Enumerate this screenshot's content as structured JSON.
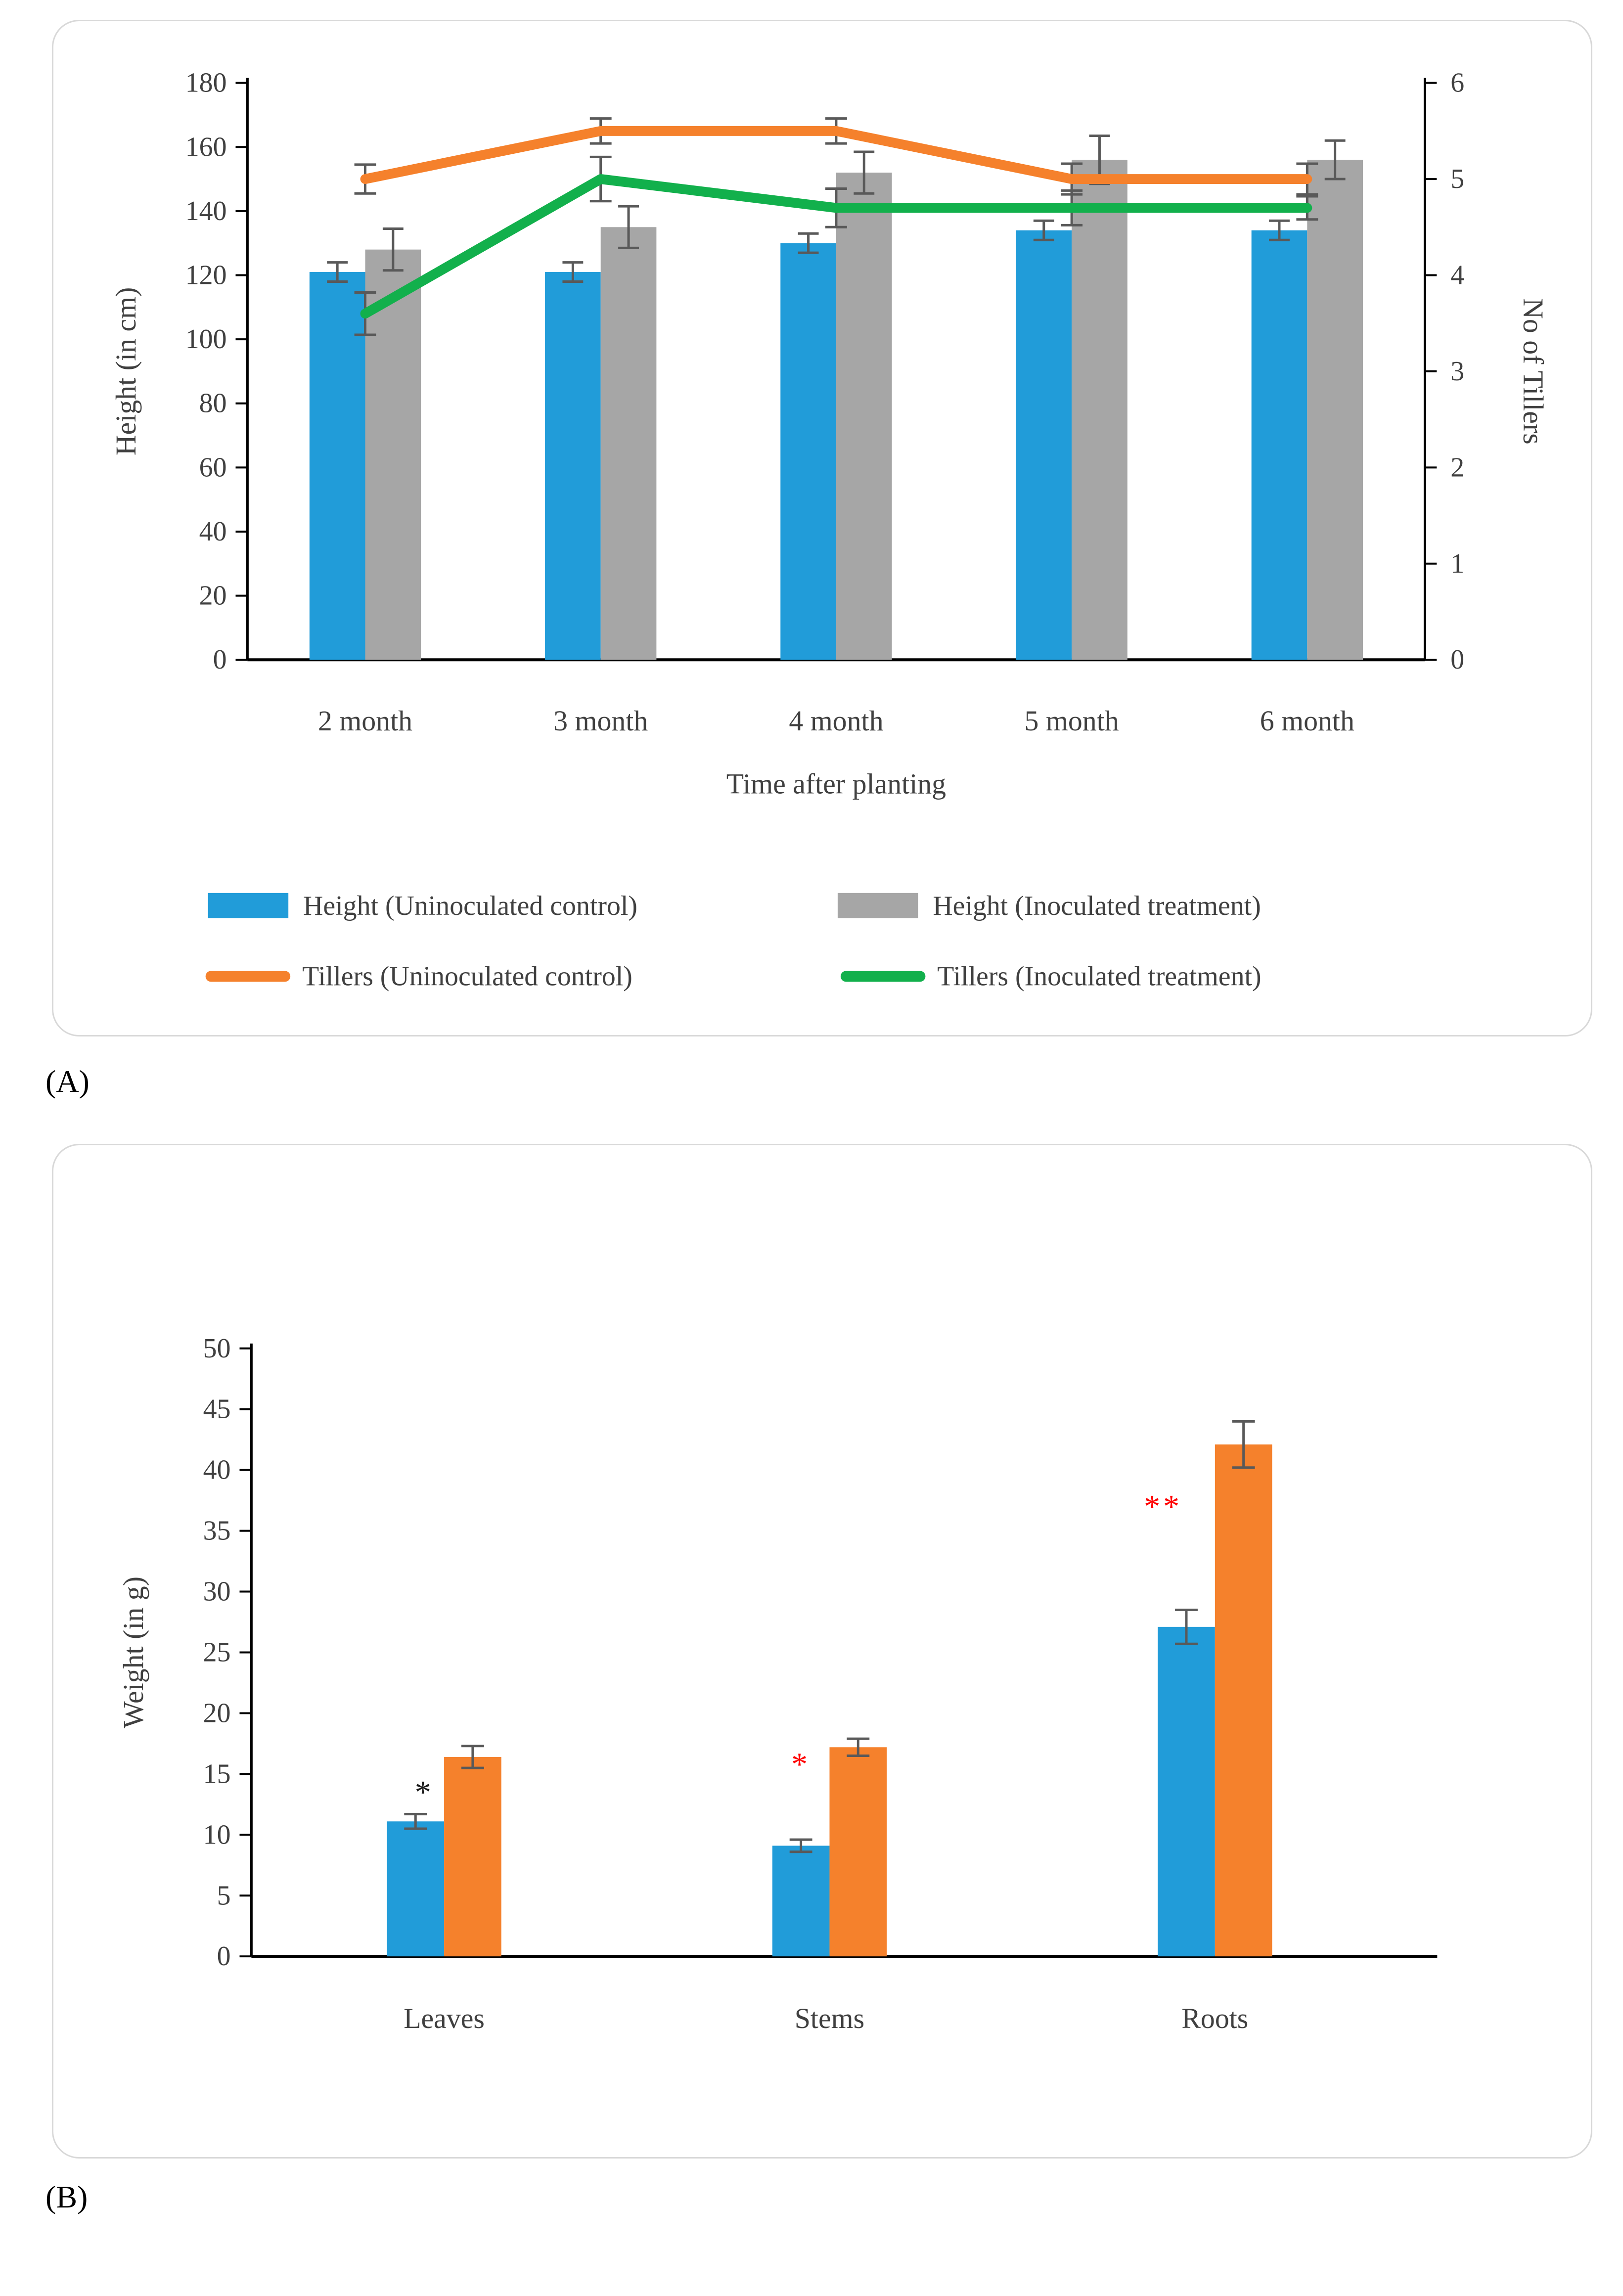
{
  "figure": {
    "panel_a_label": "(A)",
    "panel_b_label": "(B)"
  },
  "style": {
    "error_bar_color": "#595959",
    "axis_color": "#000000",
    "text_color": "#404040"
  },
  "chart_data": [
    {
      "id": "A",
      "type": "combo-bar-line",
      "categories": [
        "2 month",
        "3 month",
        "4 month",
        "5 month",
        "6 month"
      ],
      "xlabel": "Time after planting",
      "left_axis": {
        "label": "Height (in cm)",
        "min": 0,
        "max": 180,
        "step": 20
      },
      "right_axis": {
        "label": "No of Tillers",
        "min": 0,
        "max": 6,
        "step": 1
      },
      "bar_series": [
        {
          "name": "Height (Uninoculated control)",
          "color": "#219CD9",
          "values": [
            121,
            121,
            130,
            134,
            134
          ],
          "errors": [
            3,
            3,
            3,
            3,
            3
          ]
        },
        {
          "name": "Height (Inoculated treatment)",
          "color": "#A6A6A6",
          "values": [
            128,
            135,
            152,
            156,
            156
          ],
          "errors": [
            6.5,
            6.5,
            6.5,
            7.5,
            6
          ]
        }
      ],
      "line_series": [
        {
          "name": "Tillers (Uninoculated control)",
          "color": "#F5812C",
          "values": [
            5.0,
            5.5,
            5.5,
            5.0,
            5.0
          ],
          "errors": [
            0.15,
            0.13,
            0.13,
            0.16,
            0.16
          ]
        },
        {
          "name": "Tillers (Inoculated treatment)",
          "color": "#12B04C",
          "values": [
            3.6,
            5.0,
            4.7,
            4.7,
            4.7
          ],
          "errors": [
            0.22,
            0.23,
            0.2,
            0.18,
            0.12
          ]
        }
      ],
      "legend_position": "bottom",
      "grid": false
    },
    {
      "id": "B",
      "type": "bar",
      "categories": [
        "Leaves",
        "Stems",
        "Roots"
      ],
      "ylabel": "Weight (in g)",
      "yaxis": {
        "min": 0,
        "max": 50,
        "step": 5
      },
      "series": [
        {
          "name": "blue-bars",
          "color": "#219CD9",
          "values": [
            11.1,
            9.1,
            27.1
          ],
          "errors": [
            0.6,
            0.5,
            1.4
          ]
        },
        {
          "name": "orange-bars",
          "color": "#F5812C",
          "values": [
            16.4,
            17.2,
            42.1
          ],
          "errors": [
            0.9,
            0.7,
            1.9
          ]
        }
      ],
      "annotations": [
        {
          "category": "Leaves",
          "text": "*",
          "color": "#1A1A1A",
          "value": 14.0,
          "dx": -40
        },
        {
          "category": "Stems",
          "text": "*",
          "color": "#FF0000",
          "value": 16.3,
          "dx": -58
        },
        {
          "category": "Roots",
          "text": "**",
          "color": "#FF0000",
          "value": 37.5,
          "dx": -105
        }
      ],
      "legend_position": "none",
      "grid": false
    }
  ]
}
